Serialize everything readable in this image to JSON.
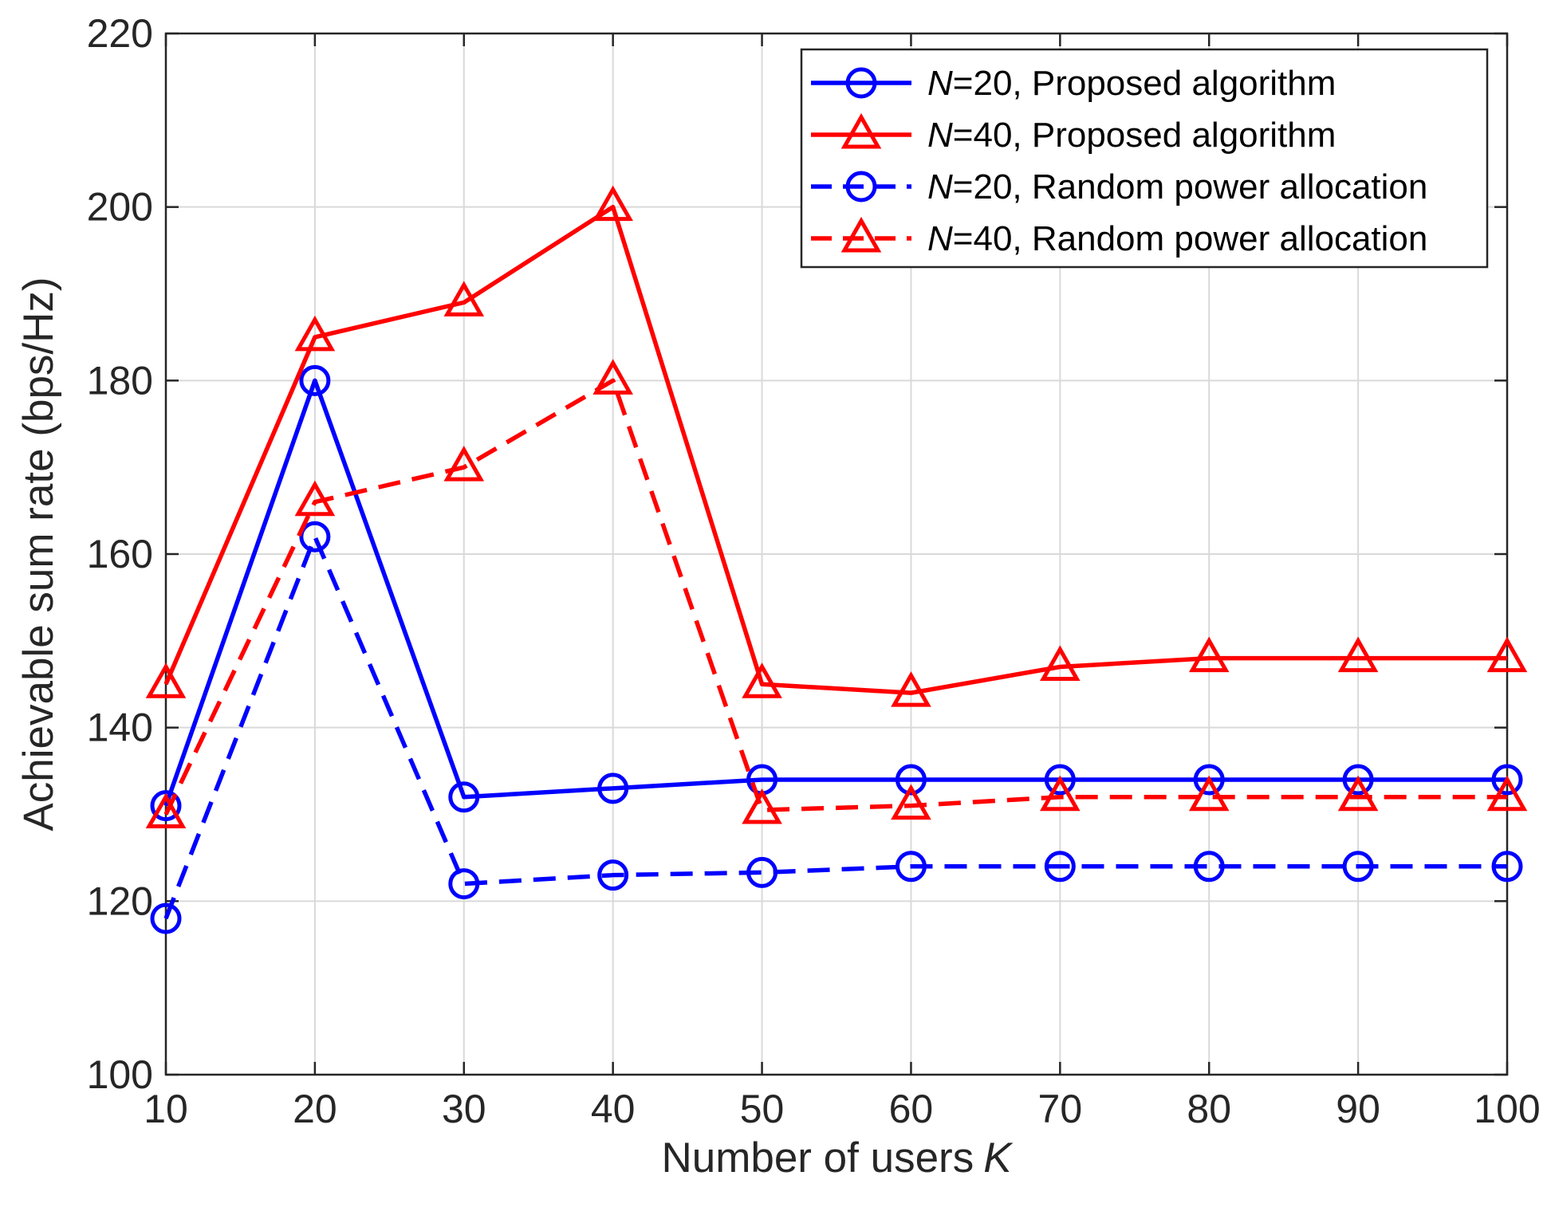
{
  "chart_data": {
    "type": "line",
    "title": "",
    "xlabel": "Number of users",
    "xlabel_var": "K",
    "ylabel": "Achievable sum rate (bps/Hz)",
    "xlim": [
      10,
      100
    ],
    "ylim": [
      100,
      220
    ],
    "xticks": [
      10,
      20,
      30,
      40,
      50,
      60,
      70,
      80,
      90,
      100
    ],
    "yticks": [
      100,
      120,
      140,
      160,
      180,
      200,
      220
    ],
    "grid": true,
    "legend_position": "top-right",
    "series": [
      {
        "name": "N=20, Proposed algorithm",
        "legend_var": "N",
        "legend_text": "=20, Proposed algorithm",
        "color": "#0000ff",
        "style": "solid",
        "marker": "circle",
        "x": [
          10,
          20,
          30,
          40,
          50,
          60,
          70,
          80,
          90,
          100
        ],
        "y": [
          131,
          180,
          132,
          133,
          134,
          134,
          134,
          134,
          134,
          134
        ]
      },
      {
        "name": "N=40, Proposed algorithm",
        "legend_var": "N",
        "legend_text": "=40, Proposed algorithm",
        "color": "#ff0000",
        "style": "solid",
        "marker": "triangle",
        "x": [
          10,
          20,
          30,
          40,
          50,
          60,
          70,
          80,
          90,
          100
        ],
        "y": [
          145,
          185,
          189,
          200,
          145,
          144,
          147,
          148,
          148,
          148
        ]
      },
      {
        "name": "N=20, Random power allocation",
        "legend_var": "N",
        "legend_text": "=20, Random power allocation",
        "color": "#0000ff",
        "style": "dashed",
        "marker": "circle",
        "x": [
          10,
          20,
          30,
          40,
          50,
          60,
          70,
          80,
          90,
          100
        ],
        "y": [
          118,
          162,
          122,
          123,
          123.3,
          124,
          124,
          124,
          124,
          124
        ]
      },
      {
        "name": "N=40, Random power allocation",
        "legend_var": "N",
        "legend_text": "=40, Random power allocation",
        "color": "#ff0000",
        "style": "dashed",
        "marker": "triangle",
        "x": [
          10,
          20,
          30,
          40,
          50,
          60,
          70,
          80,
          90,
          100
        ],
        "y": [
          130,
          166,
          170,
          180,
          130.5,
          131,
          132,
          132,
          132,
          132
        ]
      }
    ]
  }
}
